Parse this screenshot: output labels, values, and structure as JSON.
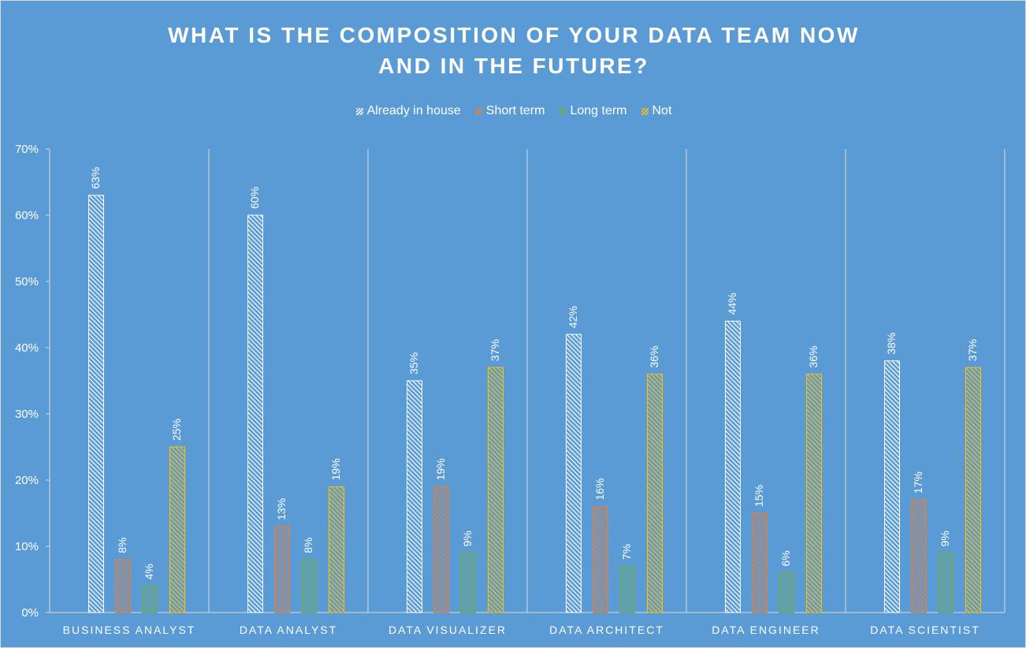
{
  "chart_data": {
    "type": "bar",
    "title": "WHAT IS THE COMPOSITION OF YOUR DATA TEAM NOW AND IN THE FUTURE?",
    "categories": [
      "BUSINESS ANALYST",
      "DATA ANALYST",
      "DATA VISUALIZER",
      "DATA ARCHITECT",
      "DATA ENGINEER",
      "DATA SCIENTIST"
    ],
    "series": [
      {
        "name": "Already in house",
        "values": [
          63,
          60,
          35,
          42,
          44,
          38
        ],
        "color": "#ffffff"
      },
      {
        "name": "Short term",
        "values": [
          8,
          13,
          19,
          16,
          15,
          17
        ],
        "color": "#ed7d31"
      },
      {
        "name": "Long term",
        "values": [
          4,
          8,
          9,
          7,
          6,
          9
        ],
        "color": "#70ad47"
      },
      {
        "name": "Not",
        "values": [
          25,
          19,
          37,
          36,
          36,
          37
        ],
        "color": "#ffc000"
      }
    ],
    "ylim": [
      0,
      70
    ],
    "yticks": [
      "0%",
      "10%",
      "20%",
      "30%",
      "40%",
      "50%",
      "60%",
      "70%"
    ],
    "value_suffix": "%",
    "legend": "top-center",
    "grid": false,
    "background": "#5b9bd5"
  }
}
